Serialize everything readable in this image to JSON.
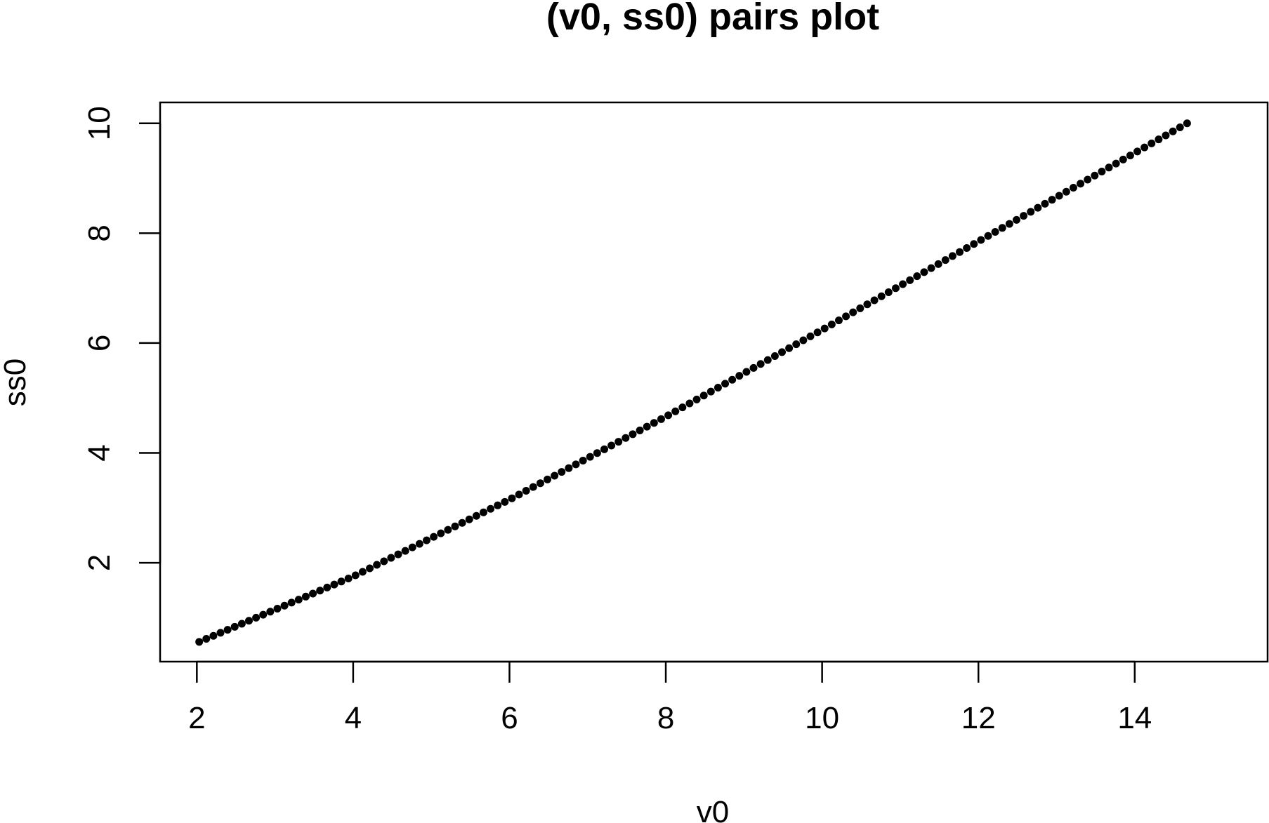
{
  "chart_data": {
    "type": "scatter",
    "title": "(v0, ss0) pairs plot",
    "xlabel": "v0",
    "ylabel": "ss0",
    "xlim": [
      1.53,
      15.7
    ],
    "ylim": [
      0.2,
      10.38
    ],
    "x_ticks": [
      2,
      4,
      6,
      8,
      10,
      12,
      14
    ],
    "y_ticks": [
      2,
      4,
      6,
      8,
      10
    ],
    "x_tick_labels": [
      "2",
      "4",
      "6",
      "8",
      "10",
      "12",
      "14"
    ],
    "y_tick_labels": [
      "2",
      "4",
      "6",
      "8",
      "10"
    ],
    "grid": false,
    "point_color": "#000000",
    "curve": {
      "x_start": 2.03,
      "x_end": 14.67,
      "n_points": 140,
      "anchor_points": [
        {
          "x": 2.03,
          "y": 0.56
        },
        {
          "x": 4.0,
          "y": 1.75
        },
        {
          "x": 6.0,
          "y": 3.15
        },
        {
          "x": 8.0,
          "y": 4.66
        },
        {
          "x": 10.0,
          "y": 6.24
        },
        {
          "x": 12.0,
          "y": 7.85
        },
        {
          "x": 14.67,
          "y": 10.0
        }
      ]
    }
  }
}
